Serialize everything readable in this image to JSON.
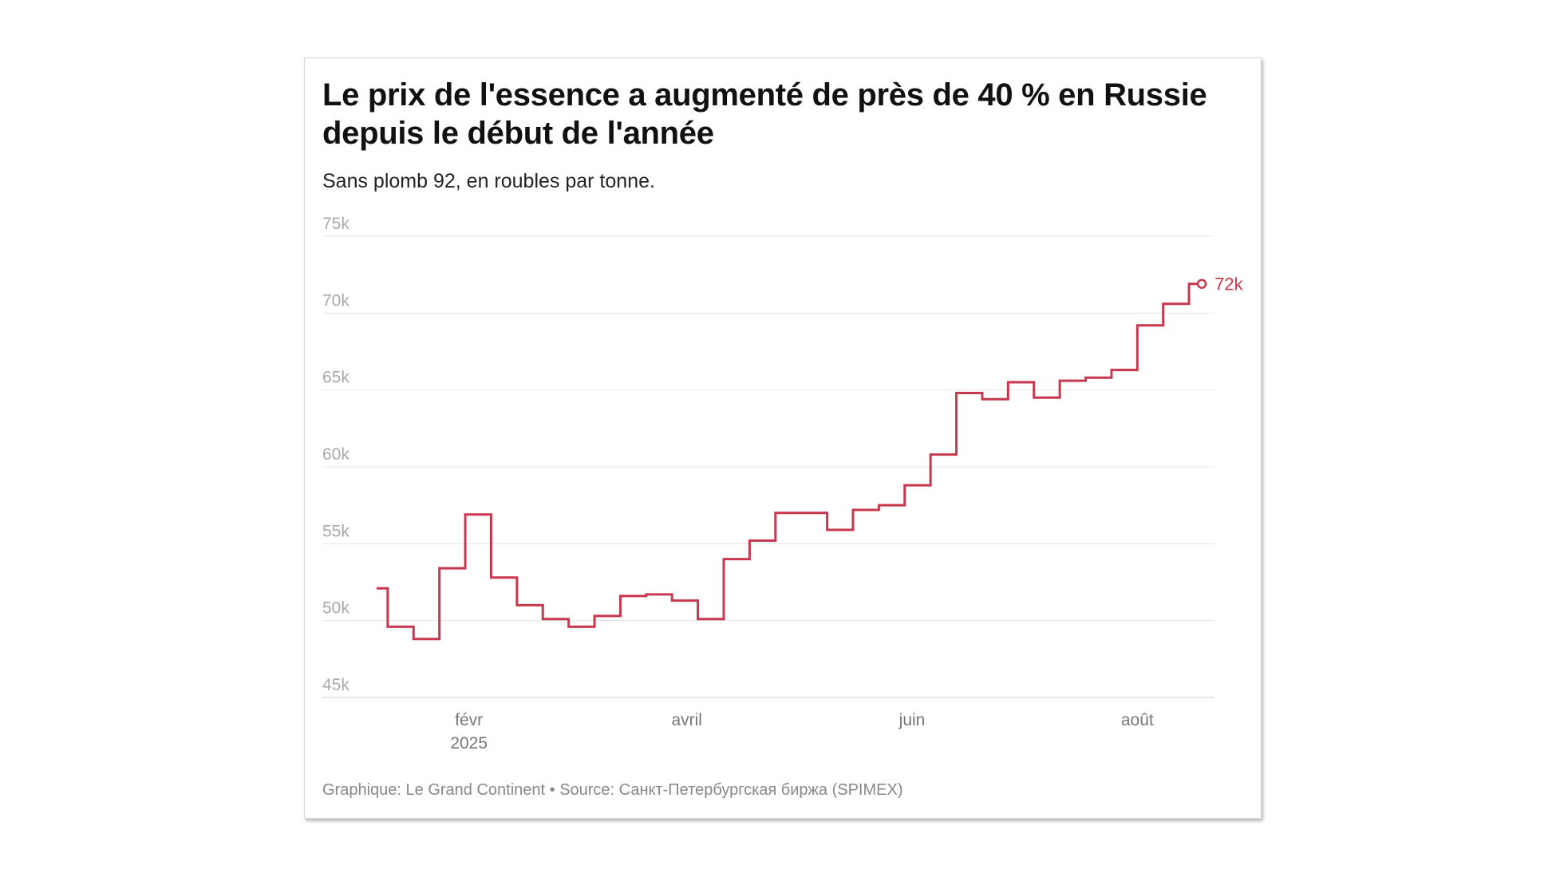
{
  "header": {
    "title": "Le prix de l'essence a augmenté de près de 40 % en Russie depuis le début de l'année",
    "subtitle": "Sans plomb 92, en roubles par tonne."
  },
  "footer": {
    "credit": "Graphique: Le Grand Continent • Source: Санкт-Петербургская биржа (SPIMEX)"
  },
  "colors": {
    "line": "#c7374d",
    "grid": "#e6e6e6",
    "axis": "#cccccc"
  },
  "chart_data": {
    "type": "line",
    "step": true,
    "ylim": [
      45000,
      75000
    ],
    "xlim": [
      "2025-01-07",
      "2025-08-18"
    ],
    "y_ticks": [
      {
        "value": 75000,
        "label": "75k"
      },
      {
        "value": 70000,
        "label": "70k"
      },
      {
        "value": 65000,
        "label": "65k"
      },
      {
        "value": 60000,
        "label": "60k"
      },
      {
        "value": 55000,
        "label": "55k"
      },
      {
        "value": 50000,
        "label": "50k"
      },
      {
        "value": 45000,
        "label": "45k"
      }
    ],
    "x_ticks": [
      {
        "date": "2025-02-01",
        "label": "févr",
        "sublabel": "2025"
      },
      {
        "date": "2025-04-01",
        "label": "avril",
        "sublabel": ""
      },
      {
        "date": "2025-06-01",
        "label": "juin",
        "sublabel": ""
      },
      {
        "date": "2025-08-01",
        "label": "août",
        "sublabel": ""
      }
    ],
    "grid": true,
    "series": [
      {
        "points": [
          {
            "x": "2025-01-07",
            "y": 52100
          },
          {
            "x": "2025-01-10",
            "y": 49600
          },
          {
            "x": "2025-01-17",
            "y": 48800
          },
          {
            "x": "2025-01-24",
            "y": 53400
          },
          {
            "x": "2025-01-31",
            "y": 56900
          },
          {
            "x": "2025-02-07",
            "y": 52800
          },
          {
            "x": "2025-02-14",
            "y": 51000
          },
          {
            "x": "2025-02-21",
            "y": 50100
          },
          {
            "x": "2025-02-28",
            "y": 49600
          },
          {
            "x": "2025-03-07",
            "y": 50300
          },
          {
            "x": "2025-03-14",
            "y": 51600
          },
          {
            "x": "2025-03-21",
            "y": 51700
          },
          {
            "x": "2025-03-28",
            "y": 51300
          },
          {
            "x": "2025-04-04",
            "y": 50100
          },
          {
            "x": "2025-04-11",
            "y": 54000
          },
          {
            "x": "2025-04-18",
            "y": 55200
          },
          {
            "x": "2025-04-25",
            "y": 57000
          },
          {
            "x": "2025-05-02",
            "y": 57000
          },
          {
            "x": "2025-05-09",
            "y": 55900
          },
          {
            "x": "2025-05-16",
            "y": 57200
          },
          {
            "x": "2025-05-23",
            "y": 57500
          },
          {
            "x": "2025-05-30",
            "y": 58800
          },
          {
            "x": "2025-06-06",
            "y": 60800
          },
          {
            "x": "2025-06-13",
            "y": 64800
          },
          {
            "x": "2025-06-20",
            "y": 64400
          },
          {
            "x": "2025-06-27",
            "y": 65500
          },
          {
            "x": "2025-07-04",
            "y": 64500
          },
          {
            "x": "2025-07-11",
            "y": 65600
          },
          {
            "x": "2025-07-18",
            "y": 65800
          },
          {
            "x": "2025-07-25",
            "y": 66300
          },
          {
            "x": "2025-08-01",
            "y": 69200
          },
          {
            "x": "2025-08-08",
            "y": 70600
          },
          {
            "x": "2025-08-15",
            "y": 71900
          }
        ],
        "end_label": "72k"
      }
    ]
  }
}
